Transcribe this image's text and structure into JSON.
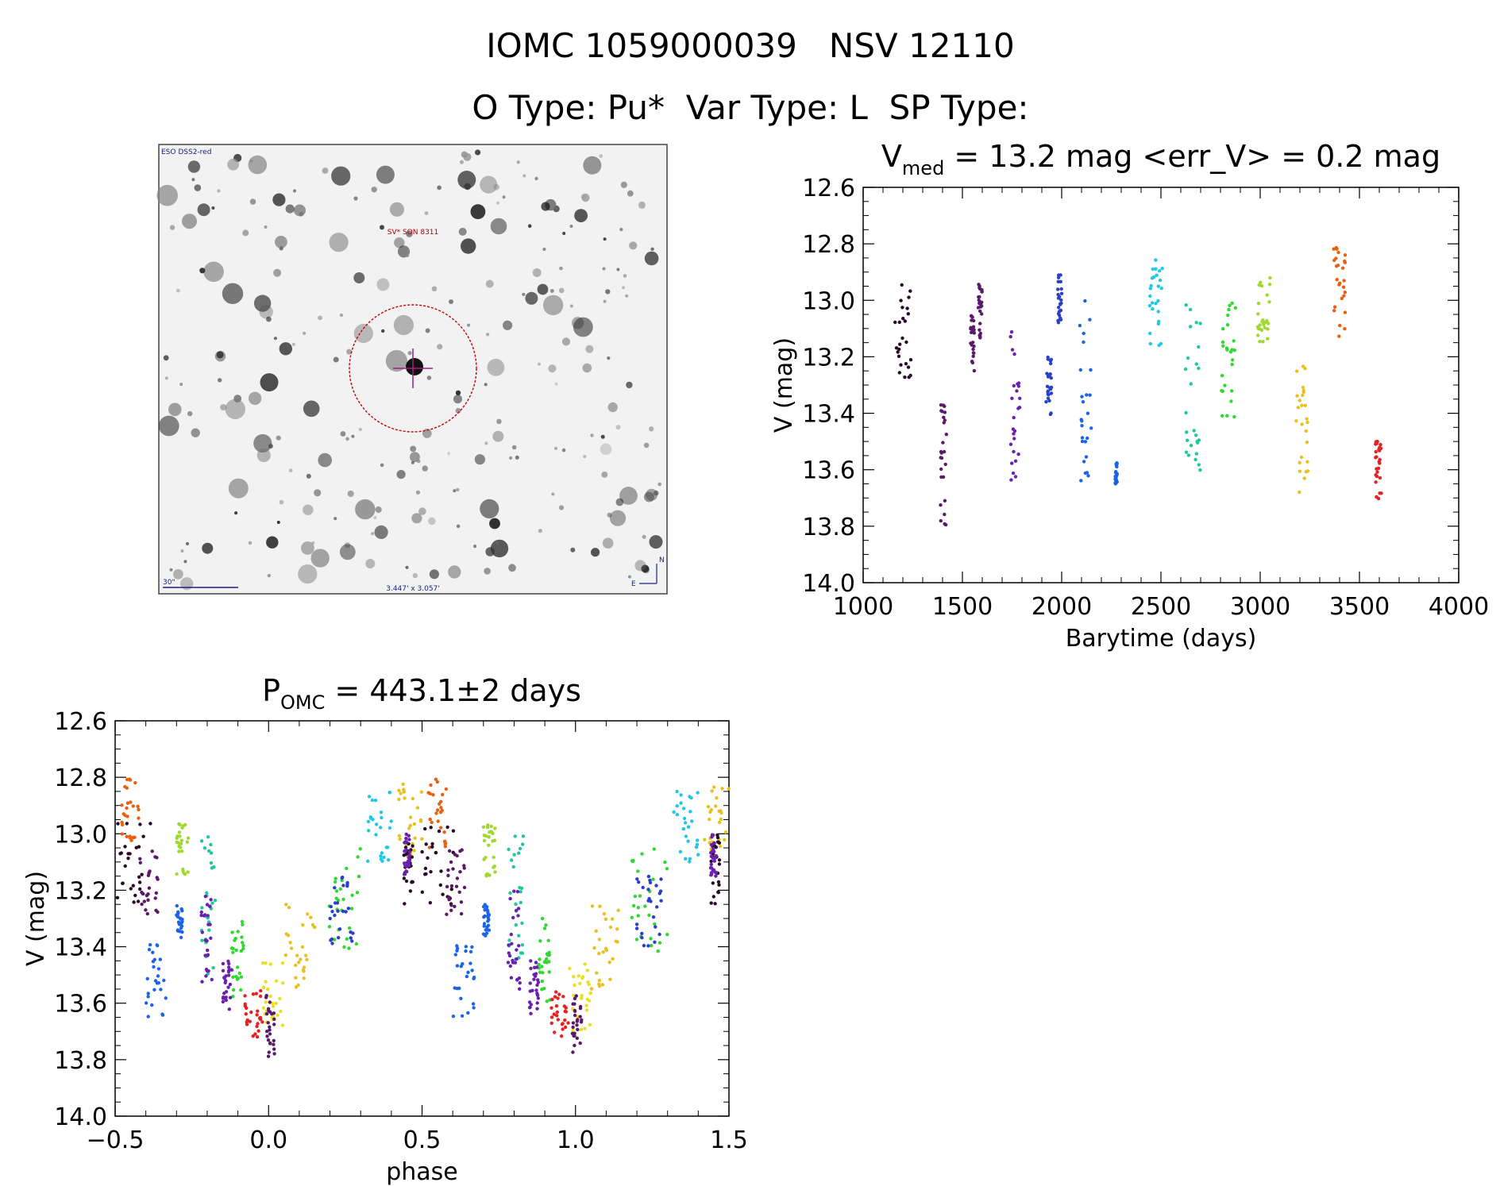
{
  "header": {
    "line1": "IOMC 1059000039   NSV 12110",
    "line2": "O Type: Pu*  Var Type: L  SP Type:"
  },
  "finder": {
    "survey_label": "ESO DSS2-red",
    "object_label": "SV* SON 8311",
    "scale_label": "30\"",
    "size_label": "3.447' x 3.057'",
    "north_label": "N",
    "east_label": "E",
    "circle_color": "#c80000",
    "cross_color": "#a0207a",
    "text_color": "#1a237e"
  },
  "chart_data": [
    {
      "type": "scatter",
      "title_main": "V",
      "title_sub": "med",
      "title_rest": " = 13.2 mag <err_V> = 0.2 mag",
      "xlabel": "Barytime (days)",
      "ylabel": "V (mag)",
      "xlim": [
        1000,
        4000
      ],
      "ylim": [
        14.0,
        12.6
      ],
      "xticks": [
        "1000",
        "1500",
        "2000",
        "2500",
        "3000",
        "3500",
        "4000"
      ],
      "yticks": [
        "12.6",
        "12.8",
        "13.0",
        "13.2",
        "13.4",
        "13.6",
        "13.8",
        "14.0"
      ],
      "groups": [
        {
          "x": [
            1160,
            1240
          ],
          "y": [
            12.92,
            13.28
          ],
          "color": "#2a0a2a"
        },
        {
          "x": [
            1390,
            1420
          ],
          "y": [
            13.36,
            13.8
          ],
          "color": "#5a1a6a"
        },
        {
          "x": [
            1540,
            1560
          ],
          "y": [
            13.05,
            13.25
          ],
          "color": "#5a1a6a"
        },
        {
          "x": [
            1580,
            1600
          ],
          "y": [
            12.94,
            13.14
          ],
          "color": "#5a1a6a"
        },
        {
          "x": [
            1740,
            1790
          ],
          "y": [
            13.08,
            13.64
          ],
          "color": "#6a20b0"
        },
        {
          "x": [
            1920,
            1950
          ],
          "y": [
            13.2,
            13.41
          ],
          "color": "#2a40c8"
        },
        {
          "x": [
            1980,
            2000
          ],
          "y": [
            12.88,
            13.08
          ],
          "color": "#2a40c8"
        },
        {
          "x": [
            2090,
            2150
          ],
          "y": [
            13.0,
            13.64
          ],
          "color": "#1a64e8"
        },
        {
          "x": [
            2270,
            2280
          ],
          "y": [
            13.57,
            13.65
          ],
          "color": "#1a64e8"
        },
        {
          "x": [
            2440,
            2510
          ],
          "y": [
            12.85,
            13.17
          ],
          "color": "#20c8e8"
        },
        {
          "x": [
            2620,
            2700
          ],
          "y": [
            12.99,
            13.61
          ],
          "color": "#20c8a0"
        },
        {
          "x": [
            2800,
            2880
          ],
          "y": [
            13.0,
            13.43
          ],
          "color": "#30d830"
        },
        {
          "x": [
            2980,
            3050
          ],
          "y": [
            12.92,
            13.15
          ],
          "color": "#a0d830"
        },
        {
          "x": [
            3180,
            3240
          ],
          "y": [
            13.23,
            13.68
          ],
          "color": "#e8c020"
        },
        {
          "x": [
            3370,
            3430
          ],
          "y": [
            12.8,
            13.14
          ],
          "color": "#e86010"
        },
        {
          "x": [
            3580,
            3610
          ],
          "y": [
            13.5,
            13.71
          ],
          "color": "#e82020"
        }
      ]
    },
    {
      "type": "scatter",
      "title_main": "P",
      "title_sub": "OMC",
      "title_rest": " = 443.1±2 days",
      "xlabel": "phase",
      "ylabel": "V (mag)",
      "xlim": [
        -0.5,
        1.5
      ],
      "ylim": [
        14.0,
        12.6
      ],
      "xticks": [
        "−0.5",
        "0.0",
        "0.5",
        "1.0",
        "1.5"
      ],
      "yticks": [
        "12.6",
        "12.8",
        "13.0",
        "13.2",
        "13.4",
        "13.6",
        "13.8",
        "14.0"
      ],
      "groups": [
        {
          "x": [
            -0.48,
            -0.42
          ],
          "y": [
            12.8,
            13.05
          ],
          "color": "#e86010"
        },
        {
          "x": [
            -0.5,
            -0.38
          ],
          "y": [
            12.95,
            13.25
          ],
          "color": "#2a0a2a"
        },
        {
          "x": [
            -0.42,
            -0.36
          ],
          "y": [
            13.05,
            13.3
          ],
          "color": "#5a1a6a"
        },
        {
          "x": [
            -0.4,
            -0.33
          ],
          "y": [
            13.38,
            13.65
          ],
          "color": "#1a64e8"
        },
        {
          "x": [
            -0.3,
            -0.26
          ],
          "y": [
            12.96,
            13.15
          ],
          "color": "#a0d830"
        },
        {
          "x": [
            -0.3,
            -0.28
          ],
          "y": [
            13.25,
            13.37
          ],
          "color": "#1a64e8"
        },
        {
          "x": [
            -0.22,
            -0.17
          ],
          "y": [
            13.0,
            13.5
          ],
          "color": "#20c8a0"
        },
        {
          "x": [
            -0.22,
            -0.18
          ],
          "y": [
            13.2,
            13.55
          ],
          "color": "#6a20b0"
        },
        {
          "x": [
            -0.12,
            -0.08
          ],
          "y": [
            13.3,
            13.6
          ],
          "color": "#30d830"
        },
        {
          "x": [
            -0.15,
            -0.12
          ],
          "y": [
            13.45,
            13.64
          ],
          "color": "#6a20b0"
        },
        {
          "x": [
            -0.08,
            -0.02
          ],
          "y": [
            13.55,
            13.72
          ],
          "color": "#e82020"
        },
        {
          "x": [
            -0.02,
            0.05
          ],
          "y": [
            13.45,
            13.7
          ],
          "color": "#e8e020"
        },
        {
          "x": [
            -0.01,
            0.02
          ],
          "y": [
            13.55,
            13.8
          ],
          "color": "#5a1a6a"
        },
        {
          "x": [
            0.05,
            0.15
          ],
          "y": [
            13.25,
            13.55
          ],
          "color": "#e8c020"
        },
        {
          "x": [
            0.18,
            0.3
          ],
          "y": [
            13.05,
            13.42
          ],
          "color": "#30d830"
        },
        {
          "x": [
            0.2,
            0.28
          ],
          "y": [
            13.15,
            13.4
          ],
          "color": "#2a40c8"
        },
        {
          "x": [
            0.32,
            0.4
          ],
          "y": [
            12.85,
            13.1
          ],
          "color": "#20c8e8"
        },
        {
          "x": [
            0.42,
            0.5
          ],
          "y": [
            12.82,
            13.08
          ],
          "color": "#e8c020"
        },
        {
          "x": [
            0.44,
            0.47
          ],
          "y": [
            13.0,
            13.25
          ],
          "color": "#2a0a2a"
        },
        {
          "x": [
            0.44,
            0.46
          ],
          "y": [
            13.0,
            13.15
          ],
          "color": "#6a20b0"
        }
      ],
      "mirror_groups": true
    }
  ]
}
